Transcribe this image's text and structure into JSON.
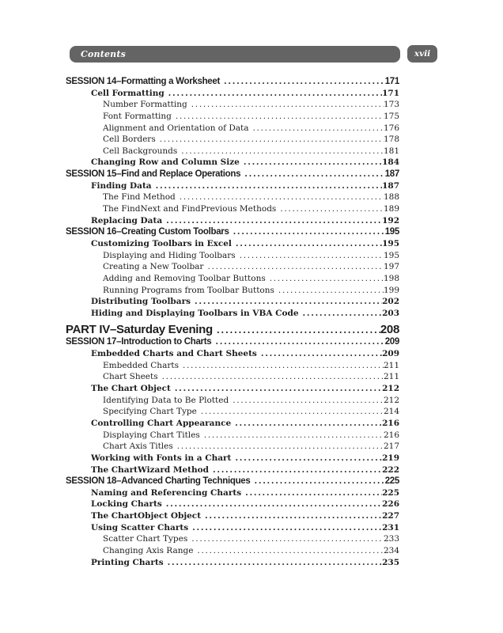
{
  "header": {
    "title": "Contents",
    "page_number": "xvii"
  },
  "colors": {
    "header_bar_gray": "#646464",
    "text": "#1e1e1e",
    "page_background": "#ffffff"
  },
  "toc": {
    "entries": [
      {
        "level": 1,
        "title": "SESSION 14–Formatting a Worksheet",
        "page": "171"
      },
      {
        "level": 2,
        "title": "Cell Formatting",
        "page": "171"
      },
      {
        "level": 3,
        "title": "Number Formatting",
        "page": "173"
      },
      {
        "level": 3,
        "title": "Font Formatting",
        "page": "175"
      },
      {
        "level": 3,
        "title": "Alignment and Orientation of Data",
        "page": "176"
      },
      {
        "level": 3,
        "title": "Cell Borders",
        "page": "178"
      },
      {
        "level": 3,
        "title": "Cell Backgrounds",
        "page": "181"
      },
      {
        "level": 2,
        "title": "Changing Row and Column Size",
        "page": "184"
      },
      {
        "level": 1,
        "title": "SESSION 15–Find and Replace Operations",
        "page": "187"
      },
      {
        "level": 2,
        "title": "Finding Data",
        "page": "187"
      },
      {
        "level": 3,
        "title": "The Find Method",
        "page": "188"
      },
      {
        "level": 3,
        "title": "The FindNext and FindPrevious Methods",
        "page": "189"
      },
      {
        "level": 2,
        "title": "Replacing Data",
        "page": "192"
      },
      {
        "level": 1,
        "title": "SESSION 16–Creating Custom Toolbars",
        "page": "195"
      },
      {
        "level": 2,
        "title": "Customizing Toolbars in Excel",
        "page": "195"
      },
      {
        "level": 3,
        "title": "Displaying and Hiding Toolbars",
        "page": "195"
      },
      {
        "level": 3,
        "title": "Creating a New Toolbar",
        "page": "197"
      },
      {
        "level": 3,
        "title": "Adding and Removing Toolbar Buttons",
        "page": "198"
      },
      {
        "level": 3,
        "title": "Running Programs from Toolbar Buttons",
        "page": "199"
      },
      {
        "level": 2,
        "title": "Distributing Toolbars",
        "page": "202"
      },
      {
        "level": 2,
        "title": "Hiding and Displaying Toolbars in VBA Code",
        "page": "203"
      },
      {
        "level": 0,
        "title": "PART IV–Saturday Evening",
        "page": "208"
      },
      {
        "level": 1,
        "title": "SESSION 17–Introduction to Charts",
        "page": "209"
      },
      {
        "level": 2,
        "title": "Embedded Charts and Chart Sheets",
        "page": "209"
      },
      {
        "level": 3,
        "title": "Embedded Charts",
        "page": "211"
      },
      {
        "level": 3,
        "title": "Chart Sheets",
        "page": "211"
      },
      {
        "level": 2,
        "title": "The Chart Object",
        "page": "212"
      },
      {
        "level": 3,
        "title": "Identifying Data to Be Plotted",
        "page": "212"
      },
      {
        "level": 3,
        "title": "Specifying Chart Type",
        "page": "214"
      },
      {
        "level": 2,
        "title": "Controlling Chart Appearance",
        "page": "216"
      },
      {
        "level": 3,
        "title": "Displaying Chart Titles",
        "page": "216"
      },
      {
        "level": 3,
        "title": "Chart Axis Titles",
        "page": "217"
      },
      {
        "level": 2,
        "title": "Working with Fonts in a Chart",
        "page": "219"
      },
      {
        "level": 2,
        "title": "The ChartWizard Method",
        "page": "222"
      },
      {
        "level": 1,
        "title": "SESSION 18–Advanced Charting Techniques",
        "page": "225"
      },
      {
        "level": 2,
        "title": "Naming and Referencing Charts",
        "page": "225"
      },
      {
        "level": 2,
        "title": "Locking Charts",
        "page": "226"
      },
      {
        "level": 2,
        "title": "The ChartObject Object",
        "page": "227"
      },
      {
        "level": 2,
        "title": "Using Scatter Charts",
        "page": "231"
      },
      {
        "level": 3,
        "title": "Scatter Chart Types",
        "page": "233"
      },
      {
        "level": 3,
        "title": "Changing Axis Range",
        "page": "234"
      },
      {
        "level": 2,
        "title": "Printing Charts",
        "page": "235"
      }
    ]
  }
}
